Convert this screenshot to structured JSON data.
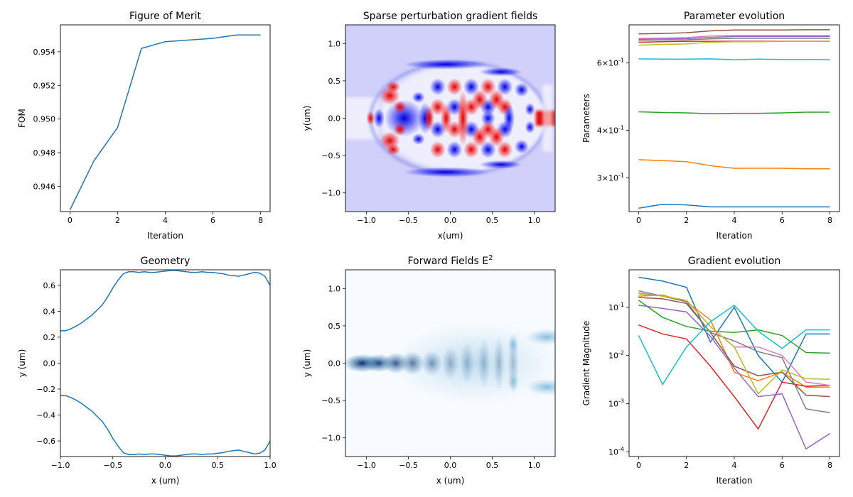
{
  "chart_data": [
    {
      "type": "line",
      "title": "Figure of Merit",
      "xlabel": "Iteration",
      "ylabel": "FOM",
      "xlim": [
        -0.4,
        8.4
      ],
      "ylim": [
        0.9445,
        0.9556
      ],
      "xticks": [
        0,
        2,
        4,
        6,
        8
      ],
      "xtick_labels": [
        "0",
        "2",
        "4",
        "6",
        "8"
      ],
      "yticks": [
        0.946,
        0.948,
        0.95,
        0.952,
        0.954
      ],
      "ytick_labels": [
        "0.946",
        "0.948",
        "0.950",
        "0.952",
        "0.954"
      ],
      "x": [
        0,
        1,
        2,
        3,
        4,
        5,
        6,
        7,
        8
      ],
      "series": [
        {
          "color": "#1f77b4",
          "values": [
            0.9446,
            0.9475,
            0.9495,
            0.9542,
            0.9546,
            0.9547,
            0.9548,
            0.955,
            0.955
          ]
        }
      ]
    },
    {
      "type": "heatmap",
      "title": "Sparse perturbation gradient fields",
      "xlabel": "x(um)",
      "ylabel": "y(um)",
      "xlim": [
        -1.25,
        1.25
      ],
      "ylim": [
        -1.25,
        1.25
      ],
      "xticks": [
        -1.0,
        -0.5,
        0.0,
        0.5,
        1.0
      ],
      "xtick_labels": [
        "−1.0",
        "−0.5",
        "0.0",
        "0.5",
        "1.0"
      ],
      "yticks": [
        -1.0,
        -0.5,
        0.0,
        0.5,
        1.0
      ],
      "ytick_labels": [
        "−1.0",
        "−0.5",
        "0.0",
        "0.5",
        "1.0"
      ],
      "colormap": "bwr"
    },
    {
      "type": "line",
      "title": "Parameter evolution",
      "xlabel": "Iteration",
      "ylabel": "Parameters",
      "yscale": "log",
      "xlim": [
        -0.4,
        8.4
      ],
      "ylim": [
        0.245,
        0.755
      ],
      "xticks": [
        0,
        2,
        4,
        6,
        8
      ],
      "xtick_labels": [
        "0",
        "2",
        "4",
        "6",
        "8"
      ],
      "yticks": [
        0.3,
        0.4,
        0.6
      ],
      "ytick_labels": [
        [
          "3",
          "-1"
        ],
        [
          "4",
          "-1"
        ],
        [
          "6",
          "-1"
        ]
      ],
      "x": [
        0,
        1,
        2,
        3,
        4,
        5,
        6,
        7,
        8
      ],
      "series": [
        {
          "color": "#1f77b4",
          "values": [
            0.25,
            0.256,
            0.255,
            0.252,
            0.252,
            0.252,
            0.252,
            0.252,
            0.252
          ]
        },
        {
          "color": "#ff7f0e",
          "values": [
            0.335,
            0.333,
            0.331,
            0.323,
            0.318,
            0.318,
            0.318,
            0.317,
            0.317
          ]
        },
        {
          "color": "#2ca02c",
          "values": [
            0.447,
            0.445,
            0.444,
            0.442,
            0.443,
            0.443,
            0.444,
            0.446,
            0.446
          ]
        },
        {
          "color": "#d62728",
          "values": [
            0.68,
            0.682,
            0.684,
            0.684,
            0.684,
            0.684,
            0.684,
            0.684,
            0.684
          ]
        },
        {
          "color": "#9467bd",
          "values": [
            0.692,
            0.694,
            0.695,
            0.7,
            0.704,
            0.704,
            0.704,
            0.704,
            0.704
          ]
        },
        {
          "color": "#8c564b",
          "values": [
            0.715,
            0.717,
            0.72,
            0.728,
            0.732,
            0.732,
            0.732,
            0.733,
            0.733
          ]
        },
        {
          "color": "#e377c2",
          "values": [
            0.696,
            0.697,
            0.699,
            0.706,
            0.708,
            0.708,
            0.708,
            0.708,
            0.708
          ]
        },
        {
          "color": "#7f7f7f",
          "values": [
            0.688,
            0.689,
            0.69,
            0.694,
            0.696,
            0.696,
            0.696,
            0.696,
            0.696
          ]
        },
        {
          "color": "#bcbd22",
          "values": [
            0.668,
            0.671,
            0.673,
            0.68,
            0.682,
            0.682,
            0.683,
            0.683,
            0.683
          ]
        },
        {
          "color": "#17becf",
          "values": [
            0.615,
            0.614,
            0.614,
            0.615,
            0.612,
            0.614,
            0.613,
            0.613,
            0.612
          ]
        }
      ]
    },
    {
      "type": "line",
      "title": "Geometry",
      "xlabel": "x (um)",
      "ylabel": "y (um)",
      "xlim": [
        -1.0,
        1.0
      ],
      "ylim": [
        -0.72,
        0.72
      ],
      "xticks": [
        -1.0,
        -0.5,
        0.0,
        0.5,
        1.0
      ],
      "xtick_labels": [
        "−1.0",
        "−0.5",
        "0.0",
        "0.5",
        "1.0"
      ],
      "yticks": [
        -0.6,
        -0.4,
        -0.2,
        0.0,
        0.2,
        0.4,
        0.6
      ],
      "ytick_labels": [
        "−0.6",
        "−0.4",
        "−0.2",
        "0.0",
        "0.2",
        "0.4",
        "0.6"
      ],
      "x": [
        -1.0,
        -0.95,
        -0.9,
        -0.85,
        -0.8,
        -0.75,
        -0.7,
        -0.65,
        -0.6,
        -0.55,
        -0.5,
        -0.45,
        -0.4,
        -0.35,
        -0.3,
        -0.25,
        -0.2,
        -0.15,
        -0.1,
        -0.05,
        0.0,
        0.05,
        0.1,
        0.15,
        0.2,
        0.25,
        0.3,
        0.35,
        0.4,
        0.45,
        0.5,
        0.55,
        0.6,
        0.65,
        0.7,
        0.75,
        0.8,
        0.85,
        0.9,
        0.95,
        1.0
      ],
      "series": [
        {
          "color": "#1f77b4",
          "values": [
            0.25,
            0.25,
            0.265,
            0.285,
            0.31,
            0.34,
            0.37,
            0.41,
            0.45,
            0.51,
            0.58,
            0.64,
            0.69,
            0.705,
            0.705,
            0.7,
            0.705,
            0.7,
            0.7,
            0.705,
            0.71,
            0.715,
            0.715,
            0.71,
            0.705,
            0.7,
            0.7,
            0.705,
            0.7,
            0.7,
            0.695,
            0.69,
            0.68,
            0.675,
            0.67,
            0.68,
            0.69,
            0.7,
            0.695,
            0.67,
            0.6
          ],
          "mirror_about_zero": true
        }
      ]
    },
    {
      "type": "heatmap",
      "title": "Forward Fields E",
      "title_superscript": "2",
      "xlabel": "x (um)",
      "ylabel": "y (um)",
      "xlim": [
        -1.25,
        1.25
      ],
      "ylim": [
        -1.25,
        1.25
      ],
      "xticks": [
        -1.0,
        -0.5,
        0.0,
        0.5,
        1.0
      ],
      "xtick_labels": [
        "−1.0",
        "−0.5",
        "0.0",
        "0.5",
        "1.0"
      ],
      "yticks": [
        -1.0,
        -0.5,
        0.0,
        0.5,
        1.0
      ],
      "ytick_labels": [
        "−1.0",
        "−0.5",
        "0.0",
        "0.5",
        "1.0"
      ],
      "colormap": "Blues"
    },
    {
      "type": "line",
      "title": "Gradient evolution",
      "xlabel": "Iteration",
      "ylabel": "Gradient Magnitude",
      "yscale": "log",
      "xlim": [
        -0.4,
        8.4
      ],
      "ylim": [
        8e-05,
        0.6
      ],
      "xticks": [
        0,
        2,
        4,
        6,
        8
      ],
      "xtick_labels": [
        "0",
        "2",
        "4",
        "6",
        "8"
      ],
      "yticks": [
        0.0001,
        0.001,
        0.01,
        0.1
      ],
      "ytick_labels": [
        [
          "10",
          "-4"
        ],
        [
          "10",
          "-3"
        ],
        [
          "10",
          "-2"
        ],
        [
          "10",
          "-1"
        ]
      ],
      "x": [
        0,
        1,
        2,
        3,
        4,
        5,
        6,
        7,
        8
      ],
      "series": [
        {
          "color": "#1f77b4",
          "values": [
            0.42,
            0.35,
            0.26,
            0.019,
            0.1,
            0.01,
            0.0028,
            0.028,
            0.028
          ]
        },
        {
          "color": "#ff7f0e",
          "values": [
            0.17,
            0.18,
            0.13,
            0.055,
            0.0045,
            0.003,
            0.0045,
            0.0022,
            0.0022
          ]
        },
        {
          "color": "#2ca02c",
          "values": [
            0.14,
            0.062,
            0.04,
            0.032,
            0.03,
            0.034,
            0.026,
            0.0115,
            0.0112
          ]
        },
        {
          "color": "#d62728",
          "values": [
            0.043,
            0.028,
            0.022,
            0.006,
            0.0014,
            0.0003,
            0.0028,
            0.0023,
            0.0024
          ]
        },
        {
          "color": "#9467bd",
          "values": [
            0.11,
            0.095,
            0.08,
            0.025,
            0.0055,
            0.0014,
            0.0016,
            0.000115,
            0.00024
          ]
        },
        {
          "color": "#8c564b",
          "values": [
            0.16,
            0.15,
            0.12,
            0.03,
            0.006,
            0.0038,
            0.0045,
            0.0015,
            0.0014
          ]
        },
        {
          "color": "#e377c2",
          "values": [
            0.2,
            0.17,
            0.14,
            0.04,
            0.015,
            0.015,
            0.01,
            0.0028,
            0.0024
          ]
        },
        {
          "color": "#7f7f7f",
          "values": [
            0.22,
            0.17,
            0.13,
            0.03,
            0.02,
            0.012,
            0.009,
            0.00078,
            0.00065
          ]
        },
        {
          "color": "#bcbd22",
          "values": [
            0.19,
            0.17,
            0.14,
            0.04,
            0.015,
            0.0016,
            0.005,
            0.0033,
            0.0032
          ]
        },
        {
          "color": "#17becf",
          "values": [
            0.026,
            0.0025,
            0.015,
            0.05,
            0.11,
            0.032,
            0.014,
            0.034,
            0.034
          ]
        }
      ]
    }
  ]
}
